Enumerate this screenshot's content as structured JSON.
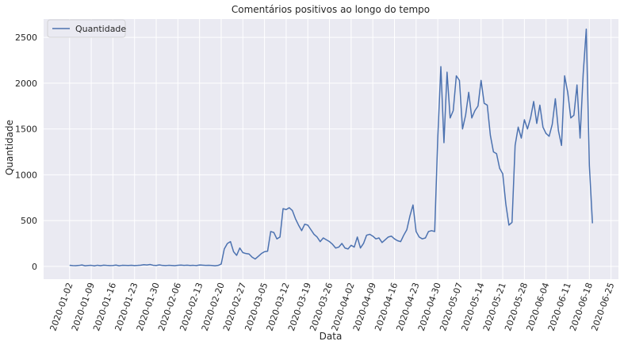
{
  "chart_data": {
    "type": "line",
    "title": "Comentários positivos ao longo do tempo",
    "xlabel": "Data",
    "ylabel": "Quantidade",
    "ylim": [
      -140,
      2700
    ],
    "yticks": [
      0,
      500,
      1000,
      1500,
      2000,
      2500
    ],
    "xticks": [
      "2020-01-02",
      "2020-01-09",
      "2020-01-16",
      "2020-01-23",
      "2020-01-30",
      "2020-02-06",
      "2020-02-13",
      "2020-02-20",
      "2020-02-27",
      "2020-03-05",
      "2020-03-12",
      "2020-03-19",
      "2020-03-26",
      "2020-04-02",
      "2020-04-09",
      "2020-04-16",
      "2020-04-23",
      "2020-04-30",
      "2020-05-07",
      "2020-05-14",
      "2020-05-21",
      "2020-05-28",
      "2020-06-04",
      "2020-06-11",
      "2020-06-18",
      "2020-06-25"
    ],
    "grid": true,
    "background": "#eaeaf2",
    "legend_position": "upper-left",
    "series": [
      {
        "name": "Quantidade",
        "color": "#4c72b0",
        "x_start": "2020-01-02",
        "values": [
          12,
          8,
          7,
          10,
          15,
          6,
          9,
          11,
          5,
          12,
          7,
          13,
          10,
          8,
          9,
          14,
          6,
          11,
          10,
          9,
          12,
          8,
          10,
          13,
          18,
          15,
          20,
          12,
          9,
          16,
          10,
          8,
          11,
          9,
          7,
          12,
          14,
          10,
          13,
          9,
          11,
          8,
          15,
          13,
          10,
          12,
          9,
          6,
          10,
          25,
          190,
          250,
          270,
          160,
          120,
          200,
          150,
          140,
          135,
          100,
          80,
          110,
          140,
          160,
          165,
          380,
          370,
          300,
          320,
          630,
          620,
          640,
          610,
          520,
          450,
          390,
          460,
          450,
          400,
          350,
          320,
          270,
          310,
          290,
          270,
          240,
          200,
          210,
          250,
          200,
          190,
          230,
          210,
          320,
          200,
          250,
          340,
          350,
          330,
          300,
          310,
          260,
          290,
          320,
          330,
          300,
          280,
          270,
          340,
          400,
          550,
          670,
          380,
          320,
          300,
          310,
          380,
          390,
          380,
          1400,
          2180,
          1350,
          2120,
          1620,
          1700,
          2080,
          2030,
          1500,
          1650,
          1900,
          1620,
          1700,
          1750,
          2030,
          1780,
          1760,
          1430,
          1250,
          1230,
          1070,
          1010,
          680,
          450,
          480,
          1320,
          1520,
          1400,
          1600,
          1500,
          1620,
          1800,
          1560,
          1760,
          1520,
          1450,
          1420,
          1550,
          1830,
          1480,
          1320,
          2080,
          1900,
          1620,
          1650,
          1980,
          1400,
          2100,
          2590,
          1100,
          470
        ]
      }
    ]
  }
}
